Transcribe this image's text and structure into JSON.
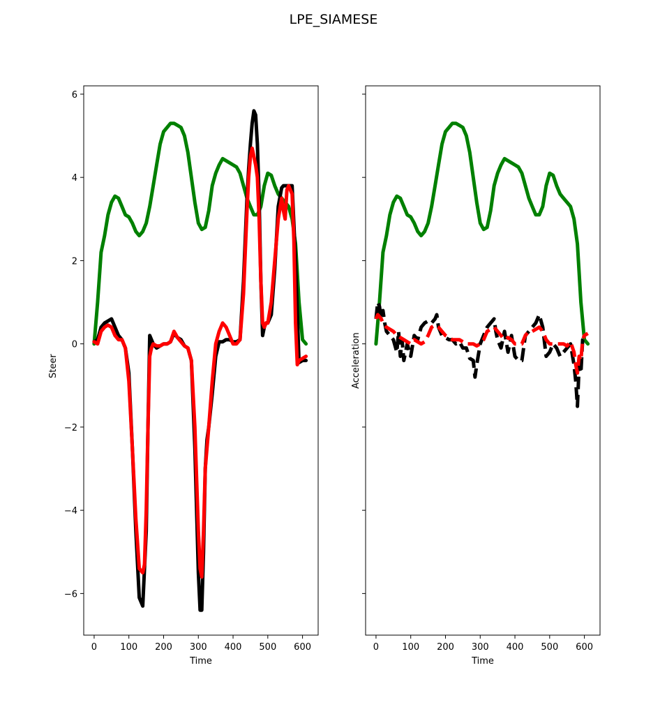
{
  "figure": {
    "title": "LPE_SIAMESE",
    "background": "#ffffff"
  },
  "colors": {
    "black_series": "#000000",
    "red_series": "#ff0000",
    "green_series": "#008000"
  },
  "chart_data": [
    {
      "type": "line",
      "title": "",
      "xlabel": "Time",
      "ylabel": "Steer",
      "xlim": [
        -30,
        645
      ],
      "ylim": [
        -7.0,
        6.2
      ],
      "xticks": [
        0,
        100,
        200,
        300,
        400,
        500,
        600
      ],
      "xtick_labels": [
        "0",
        "100",
        "200",
        "300",
        "400",
        "500",
        "600"
      ],
      "yticks": [
        -6,
        -4,
        -2,
        0,
        2,
        4,
        6
      ],
      "ytick_labels": [
        "−6",
        "−4",
        "−2",
        "0",
        "2",
        "4",
        "6"
      ],
      "grid": false,
      "series": [
        {
          "color": "#008000",
          "style": "solid",
          "x": [
            0,
            10,
            20,
            30,
            40,
            50,
            60,
            70,
            80,
            90,
            100,
            110,
            120,
            130,
            140,
            150,
            160,
            170,
            180,
            190,
            200,
            210,
            220,
            230,
            240,
            250,
            260,
            270,
            280,
            290,
            300,
            310,
            320,
            330,
            340,
            350,
            360,
            370,
            380,
            390,
            400,
            410,
            420,
            430,
            440,
            450,
            460,
            470,
            480,
            490,
            500,
            510,
            520,
            530,
            540,
            550,
            560,
            570,
            580,
            590,
            600,
            610
          ],
          "y": [
            0.0,
            1.0,
            2.2,
            2.6,
            3.1,
            3.4,
            3.55,
            3.5,
            3.3,
            3.1,
            3.05,
            2.9,
            2.7,
            2.6,
            2.7,
            2.9,
            3.3,
            3.8,
            4.3,
            4.8,
            5.1,
            5.2,
            5.3,
            5.3,
            5.25,
            5.2,
            5.0,
            4.6,
            4.0,
            3.4,
            2.9,
            2.75,
            2.8,
            3.2,
            3.8,
            4.1,
            4.3,
            4.45,
            4.4,
            4.35,
            4.3,
            4.25,
            4.1,
            3.8,
            3.5,
            3.3,
            3.1,
            3.1,
            3.3,
            3.8,
            4.1,
            4.05,
            3.8,
            3.6,
            3.5,
            3.4,
            3.3,
            3.0,
            2.4,
            1.0,
            0.1,
            0.0
          ]
        },
        {
          "color": "#000000",
          "style": "solid",
          "x": [
            0,
            10,
            20,
            30,
            40,
            50,
            60,
            70,
            80,
            90,
            95,
            100,
            110,
            120,
            130,
            140,
            150,
            155,
            160,
            165,
            170,
            180,
            190,
            200,
            210,
            220,
            230,
            240,
            250,
            260,
            270,
            280,
            290,
            300,
            305,
            310,
            315,
            320,
            325,
            330,
            340,
            350,
            360,
            370,
            380,
            390,
            400,
            410,
            420,
            430,
            440,
            445,
            450,
            455,
            460,
            465,
            470,
            475,
            480,
            485,
            490,
            495,
            500,
            510,
            520,
            530,
            540,
            545,
            550,
            555,
            560,
            570,
            580,
            590,
            600,
            610
          ],
          "y": [
            0.05,
            0.1,
            0.4,
            0.5,
            0.55,
            0.6,
            0.4,
            0.2,
            0.1,
            -0.1,
            -0.4,
            -0.7,
            -2.5,
            -4.5,
            -6.1,
            -6.3,
            -4.5,
            -2.0,
            0.2,
            0.1,
            0.0,
            -0.1,
            -0.05,
            0.0,
            0.0,
            0.05,
            0.25,
            0.15,
            0.1,
            -0.05,
            -0.1,
            -0.4,
            -2.5,
            -5.5,
            -6.4,
            -6.4,
            -5.0,
            -3.0,
            -2.3,
            -2.0,
            -1.2,
            -0.3,
            0.05,
            0.05,
            0.1,
            0.1,
            0.05,
            0.05,
            0.1,
            1.5,
            3.5,
            4.2,
            4.8,
            5.3,
            5.6,
            5.5,
            4.8,
            3.5,
            1.5,
            0.2,
            0.4,
            0.5,
            0.5,
            0.7,
            1.8,
            3.3,
            3.75,
            3.8,
            3.8,
            3.8,
            3.8,
            3.8,
            2.0,
            -0.45,
            -0.4,
            -0.4
          ]
        },
        {
          "color": "#ff0000",
          "style": "solid",
          "x": [
            0,
            10,
            20,
            30,
            40,
            50,
            60,
            70,
            80,
            90,
            95,
            100,
            110,
            120,
            130,
            140,
            145,
            150,
            155,
            160,
            165,
            170,
            180,
            190,
            200,
            210,
            220,
            230,
            240,
            250,
            260,
            270,
            280,
            290,
            300,
            305,
            310,
            315,
            320,
            325,
            330,
            340,
            350,
            360,
            370,
            380,
            390,
            400,
            410,
            420,
            430,
            440,
            445,
            450,
            455,
            460,
            465,
            470,
            475,
            480,
            485,
            490,
            495,
            500,
            510,
            520,
            530,
            540,
            545,
            550,
            555,
            560,
            570,
            575,
            580,
            585,
            590,
            600,
            610
          ],
          "y": [
            0.05,
            0.0,
            0.3,
            0.4,
            0.45,
            0.4,
            0.2,
            0.1,
            0.1,
            -0.1,
            -0.5,
            -0.9,
            -2.5,
            -4.2,
            -5.4,
            -5.5,
            -5.3,
            -4.0,
            -2.0,
            -0.3,
            -0.1,
            0.0,
            -0.05,
            -0.05,
            0.0,
            0.0,
            0.05,
            0.3,
            0.15,
            0.05,
            -0.05,
            -0.1,
            -0.4,
            -2.0,
            -4.5,
            -5.4,
            -5.6,
            -4.5,
            -3.0,
            -2.5,
            -2.0,
            -0.9,
            0.0,
            0.3,
            0.5,
            0.4,
            0.2,
            0.0,
            0.0,
            0.1,
            1.2,
            3.2,
            4.0,
            4.5,
            4.7,
            4.5,
            4.3,
            4.0,
            3.0,
            1.5,
            0.5,
            0.4,
            0.5,
            0.5,
            1.0,
            2.0,
            3.0,
            3.5,
            3.2,
            3.0,
            3.7,
            3.8,
            3.6,
            2.5,
            0.5,
            -0.5,
            -0.4,
            -0.35,
            -0.3
          ]
        }
      ]
    },
    {
      "type": "line",
      "title": "",
      "xlabel": "Time",
      "ylabel": "Acceleration",
      "xlim": [
        -30,
        645
      ],
      "ylim": [
        -7.0,
        6.2
      ],
      "xticks": [
        0,
        100,
        200,
        300,
        400,
        500,
        600
      ],
      "xtick_labels": [
        "0",
        "100",
        "200",
        "300",
        "400",
        "500",
        "600"
      ],
      "yticks": [
        -6,
        -4,
        -2,
        0,
        2,
        4,
        6
      ],
      "ytick_labels": [],
      "sharey": true,
      "grid": false,
      "series": [
        {
          "color": "#008000",
          "style": "solid",
          "x": [
            0,
            10,
            20,
            30,
            40,
            50,
            60,
            70,
            80,
            90,
            100,
            110,
            120,
            130,
            140,
            150,
            160,
            170,
            180,
            190,
            200,
            210,
            220,
            230,
            240,
            250,
            260,
            270,
            280,
            290,
            300,
            310,
            320,
            330,
            340,
            350,
            360,
            370,
            380,
            390,
            400,
            410,
            420,
            430,
            440,
            450,
            460,
            470,
            480,
            490,
            500,
            510,
            520,
            530,
            540,
            550,
            560,
            570,
            580,
            590,
            600,
            610
          ],
          "y": [
            0.0,
            1.0,
            2.2,
            2.6,
            3.1,
            3.4,
            3.55,
            3.5,
            3.3,
            3.1,
            3.05,
            2.9,
            2.7,
            2.6,
            2.7,
            2.9,
            3.3,
            3.8,
            4.3,
            4.8,
            5.1,
            5.2,
            5.3,
            5.3,
            5.25,
            5.2,
            5.0,
            4.6,
            4.0,
            3.4,
            2.9,
            2.75,
            2.8,
            3.2,
            3.8,
            4.1,
            4.3,
            4.45,
            4.4,
            4.35,
            4.3,
            4.25,
            4.1,
            3.8,
            3.5,
            3.3,
            3.1,
            3.1,
            3.3,
            3.8,
            4.1,
            4.05,
            3.8,
            3.6,
            3.5,
            3.4,
            3.3,
            3.0,
            2.4,
            1.0,
            0.1,
            0.0
          ]
        },
        {
          "color": "#000000",
          "style": "dashed",
          "x": [
            0,
            5,
            10,
            15,
            20,
            25,
            30,
            40,
            50,
            60,
            65,
            70,
            75,
            80,
            90,
            100,
            110,
            120,
            130,
            140,
            150,
            160,
            170,
            175,
            180,
            190,
            200,
            210,
            220,
            230,
            240,
            250,
            260,
            270,
            280,
            285,
            290,
            300,
            310,
            320,
            330,
            340,
            345,
            350,
            360,
            370,
            380,
            390,
            400,
            410,
            420,
            430,
            440,
            450,
            460,
            470,
            480,
            490,
            500,
            510,
            520,
            530,
            540,
            550,
            560,
            570,
            575,
            580,
            585,
            590,
            595,
            600,
            610
          ],
          "y": [
            0.6,
            1.0,
            0.9,
            0.6,
            0.8,
            0.5,
            0.3,
            0.2,
            0.1,
            -0.2,
            0.3,
            -0.3,
            0.1,
            -0.4,
            0.0,
            -0.3,
            0.2,
            0.1,
            0.4,
            0.5,
            0.55,
            0.5,
            0.6,
            0.7,
            0.4,
            0.2,
            0.15,
            0.1,
            0.1,
            0.0,
            0.05,
            -0.1,
            -0.1,
            -0.35,
            -0.4,
            -0.8,
            -0.5,
            0.0,
            0.2,
            0.4,
            0.5,
            0.6,
            0.3,
            0.1,
            -0.1,
            0.3,
            -0.2,
            0.2,
            -0.3,
            -0.4,
            -0.4,
            0.2,
            0.3,
            0.4,
            0.5,
            0.7,
            0.4,
            -0.3,
            -0.2,
            0.0,
            -0.1,
            -0.3,
            -0.2,
            -0.1,
            0.0,
            -0.5,
            -0.9,
            -1.5,
            -0.5,
            -0.7,
            0.1,
            0.15,
            0.15
          ]
        },
        {
          "color": "#ff0000",
          "style": "dashed",
          "x": [
            0,
            5,
            10,
            15,
            20,
            30,
            40,
            50,
            60,
            70,
            80,
            90,
            100,
            110,
            120,
            130,
            140,
            150,
            160,
            170,
            180,
            190,
            200,
            210,
            220,
            230,
            240,
            250,
            260,
            270,
            280,
            290,
            300,
            310,
            320,
            330,
            340,
            350,
            360,
            370,
            380,
            390,
            400,
            410,
            420,
            430,
            440,
            450,
            460,
            470,
            480,
            490,
            500,
            510,
            520,
            530,
            540,
            550,
            560,
            570,
            575,
            580,
            585,
            590,
            595,
            600,
            610
          ],
          "y": [
            0.6,
            0.7,
            0.65,
            0.6,
            0.5,
            0.4,
            0.35,
            0.3,
            0.2,
            0.15,
            0.1,
            0.05,
            0.0,
            0.1,
            0.05,
            0.0,
            0.05,
            0.2,
            0.4,
            0.45,
            0.4,
            0.3,
            0.2,
            0.15,
            0.1,
            0.1,
            0.1,
            0.05,
            0.0,
            0.0,
            0.0,
            -0.05,
            0.0,
            0.1,
            0.3,
            0.35,
            0.4,
            0.3,
            0.2,
            0.1,
            0.15,
            0.1,
            0.0,
            0.0,
            0.0,
            0.2,
            0.3,
            0.3,
            0.35,
            0.4,
            0.3,
            0.1,
            0.0,
            0.0,
            0.0,
            0.0,
            0.0,
            -0.05,
            0.05,
            -0.2,
            -0.5,
            -0.7,
            -0.3,
            -0.4,
            0.1,
            0.2,
            0.25
          ]
        }
      ]
    }
  ]
}
